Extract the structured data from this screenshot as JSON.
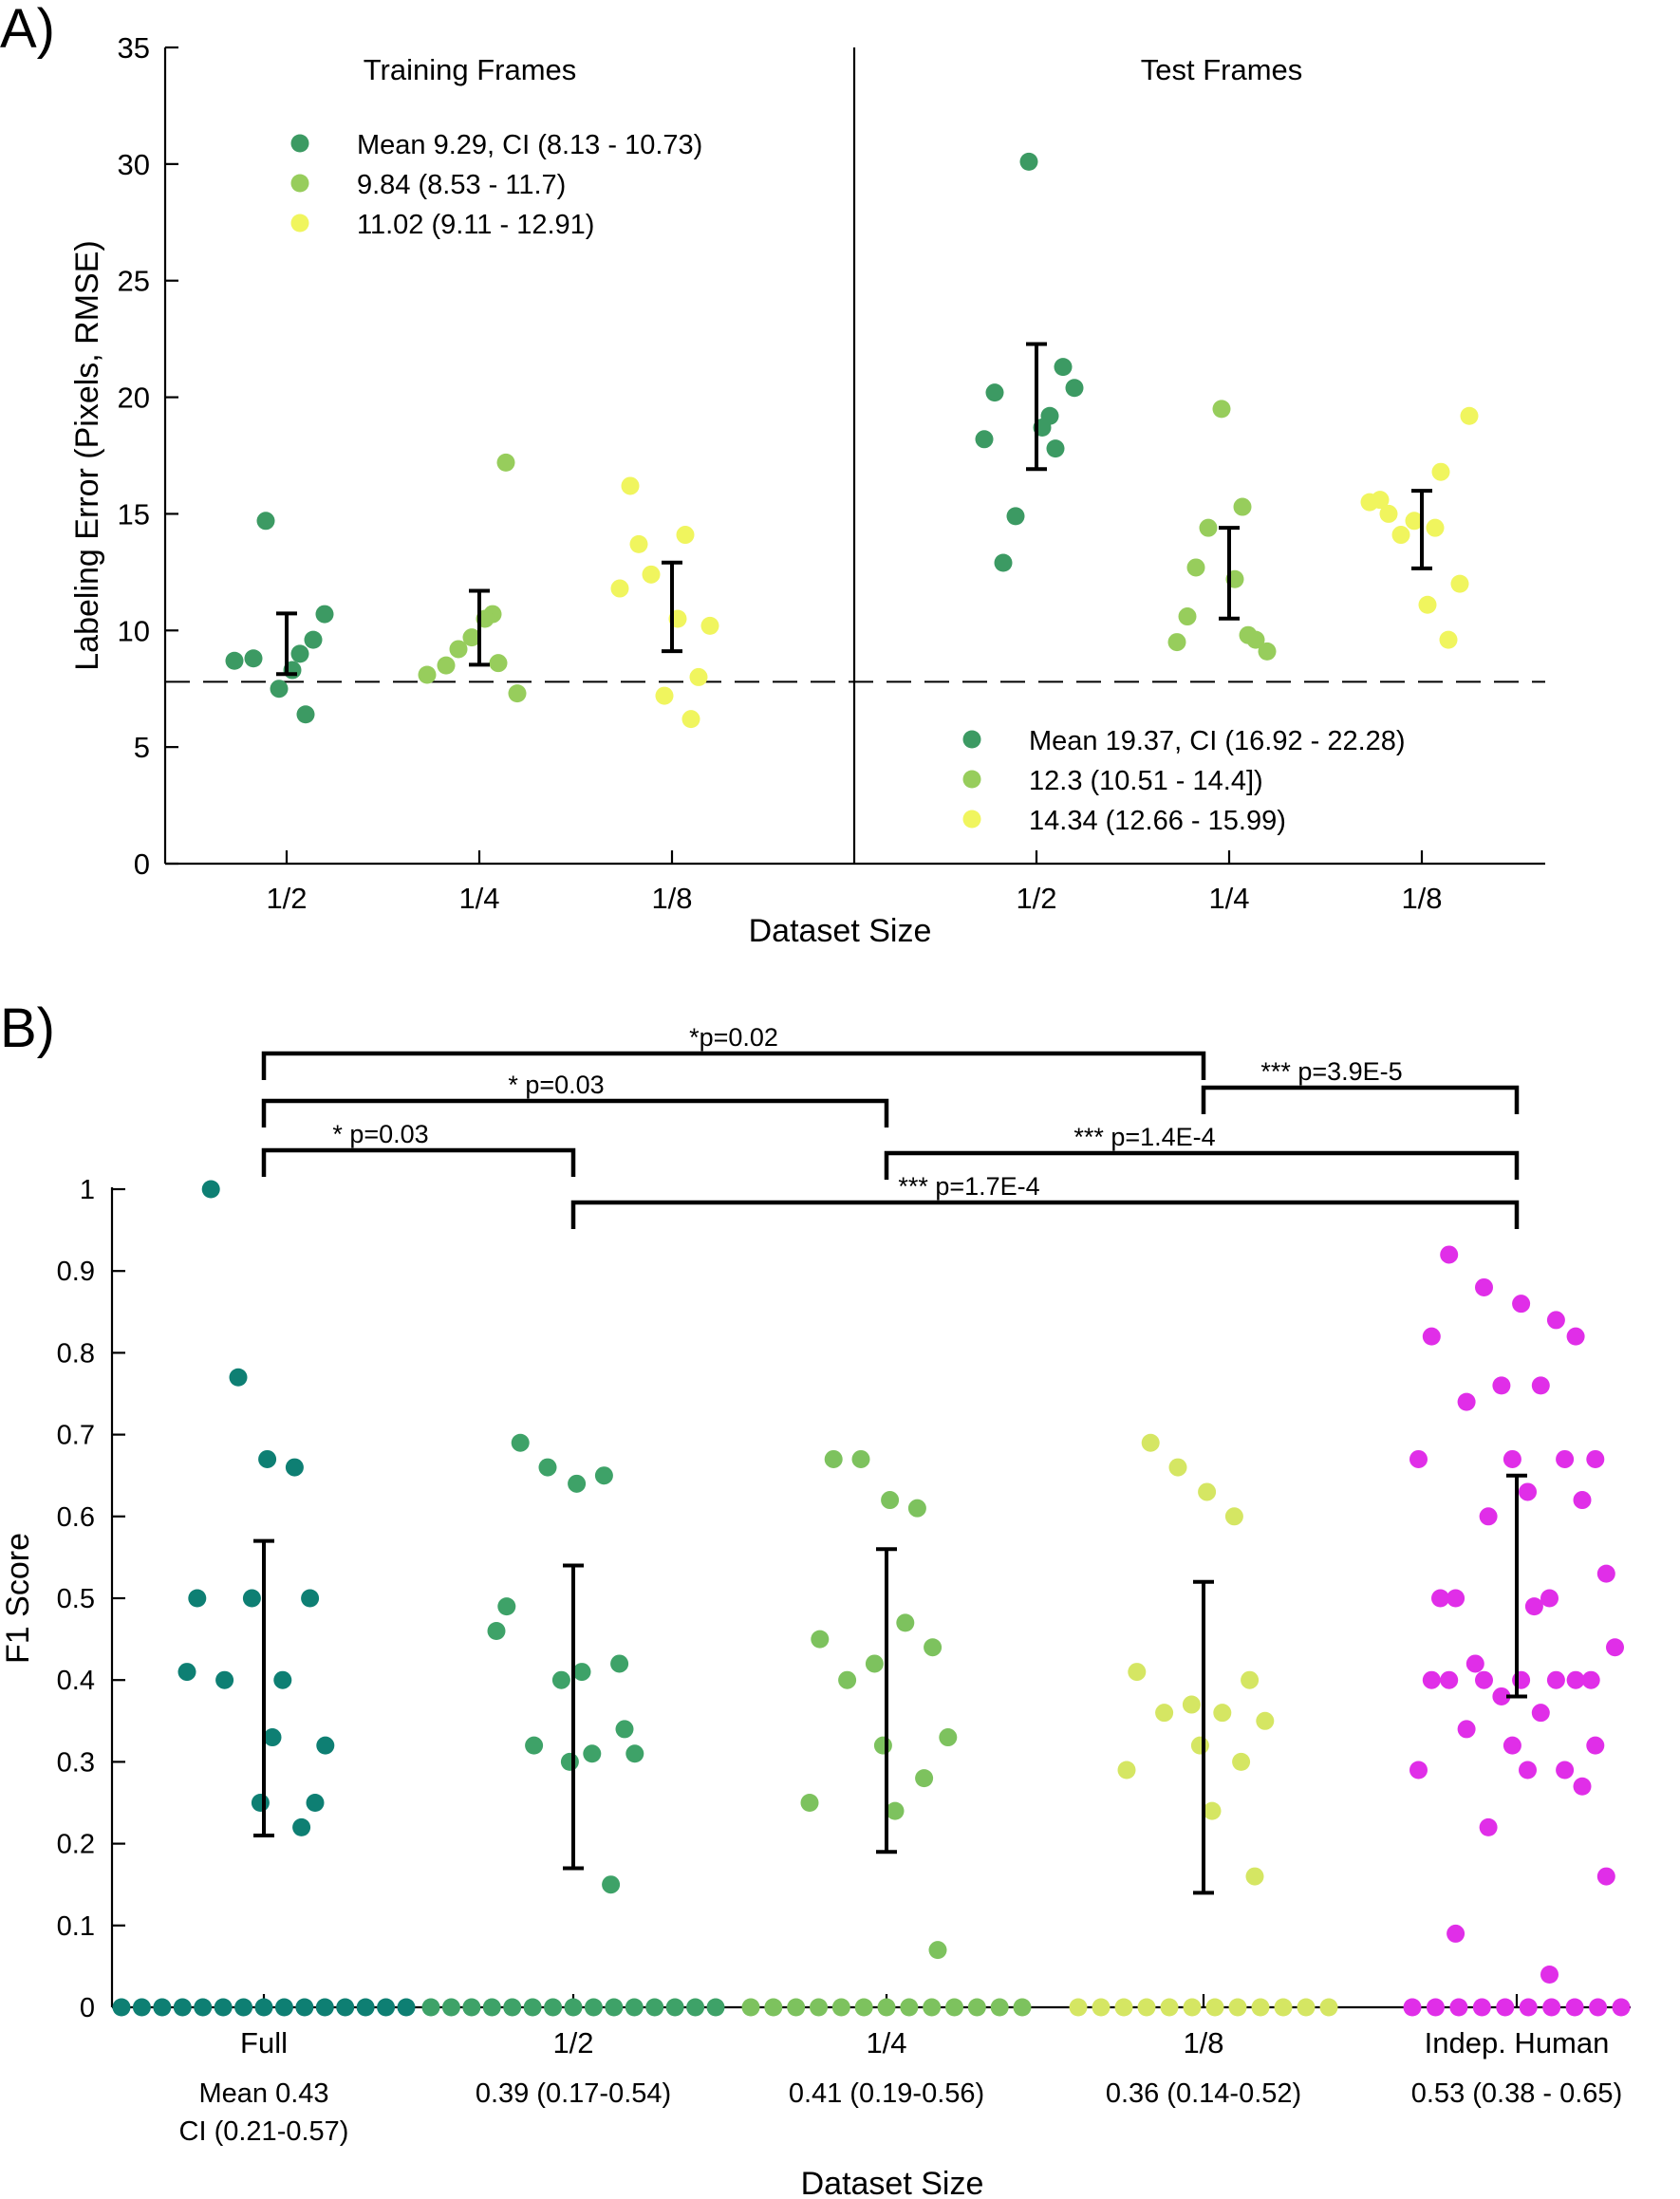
{
  "colors": {
    "darkgreen": "#3c9a63",
    "midgreen": "#97cd5c",
    "yellow": "#f0f55e",
    "teal": "#0e7f73",
    "panelb_half": "#3ea268",
    "panelb_quarter": "#7dc25e",
    "panelb_eighth": "#d5e663",
    "magenta": "#e02ee8"
  },
  "chart_data": [
    {
      "type": "scatter",
      "panel_label": "A)",
      "ylabel": "Labeling Error (Pixels, RMSE)",
      "xlabel": "Dataset Size",
      "ylim": [
        0,
        35
      ],
      "yticks": [
        "0",
        "5",
        "10",
        "15",
        "20",
        "25",
        "30",
        "35"
      ],
      "reference_line": 7.8,
      "groups": [
        {
          "title": "Training Frames",
          "legend": [
            "Mean 9.29, CI (8.13 - 10.73)",
            "9.84 (8.53 - 11.7)",
            "11.02 (9.11 - 12.91)"
          ],
          "categories": [
            "1/2",
            "1/4",
            "1/8"
          ],
          "series": [
            {
              "color": "darkgreen",
              "values": [
                8.7,
                14.7,
                9.0,
                7.5,
                9.6,
                10.7,
                8.8,
                8.3,
                6.4
              ],
              "ci": [
                8.13,
                10.73
              ]
            },
            {
              "color": "midgreen",
              "values": [
                8.1,
                9.2,
                10.7,
                9.7,
                17.2,
                7.3,
                8.5,
                10.5,
                8.6
              ],
              "ci": [
                8.53,
                11.7
              ]
            },
            {
              "color": "yellow",
              "values": [
                11.8,
                12.4,
                14.1,
                7.2,
                8.0,
                10.2,
                13.7,
                10.5,
                6.2,
                16.2
              ],
              "ci": [
                9.11,
                12.91
              ]
            }
          ]
        },
        {
          "title": "Test Frames",
          "legend": [
            "Mean 19.37, CI (16.92 - 22.28)",
            "12.3 (10.51 - 14.4])",
            "14.34 (12.66 - 15.99)"
          ],
          "categories": [
            "1/2",
            "1/4",
            "1/8"
          ],
          "series": [
            {
              "color": "darkgreen",
              "values": [
                18.2,
                14.9,
                19.2,
                30.1,
                21.3,
                20.4,
                12.9,
                18.7,
                17.8,
                20.2
              ],
              "ci": [
                16.92,
                22.28
              ]
            },
            {
              "color": "midgreen",
              "values": [
                9.5,
                14.4,
                15.3,
                19.5,
                9.6,
                9.1,
                12.7,
                12.2,
                9.8,
                10.6
              ],
              "ci": [
                10.51,
                14.4
              ]
            },
            {
              "color": "yellow",
              "values": [
                15.5,
                14.1,
                14.4,
                14.7,
                9.6,
                12.0,
                15.0,
                11.1,
                16.8,
                15.6,
                19.2
              ],
              "ci": [
                12.66,
                15.99
              ]
            }
          ]
        }
      ]
    },
    {
      "type": "scatter",
      "panel_label": "B)",
      "ylabel": "F1 Score",
      "xlabel": "Dataset Size",
      "ylim": [
        0,
        1
      ],
      "yticks": [
        "0",
        "0.1",
        "0.2",
        "0.3",
        "0.4",
        "0.5",
        "0.6",
        "0.7",
        "0.8",
        "0.9",
        "1"
      ],
      "categories": [
        "Full",
        "1/2",
        "1/4",
        "1/8",
        "Indep. Human"
      ],
      "summaries": [
        [
          "Mean 0.43",
          "CI (0.21-0.57)"
        ],
        [
          "0.39 (0.17-0.54)"
        ],
        [
          "0.41 (0.19-0.56)"
        ],
        [
          "0.36 (0.14-0.52)"
        ],
        [
          "0.53 (0.38 - 0.65)"
        ]
      ],
      "series": [
        {
          "name": "Full",
          "color": "teal",
          "ci": [
            0.21,
            0.57
          ],
          "values": [
            1.0,
            0.77,
            0.67,
            0.66,
            0.5,
            0.5,
            0.5,
            0.4,
            0.4,
            0.32,
            0.25,
            0.22,
            0.41,
            0.33,
            0.25,
            0,
            0,
            0,
            0,
            0,
            0,
            0,
            0,
            0,
            0,
            0,
            0,
            0,
            0,
            0
          ]
        },
        {
          "name": "1/2",
          "color": "panelb_half",
          "ci": [
            0.17,
            0.54
          ],
          "values": [
            0.69,
            0.66,
            0.64,
            0.65,
            0.49,
            0.42,
            0.4,
            0.31,
            0.32,
            0.31,
            0.3,
            0.15,
            0.46,
            0.41,
            0.34,
            0,
            0,
            0,
            0,
            0,
            0,
            0,
            0,
            0,
            0,
            0,
            0,
            0,
            0,
            0
          ]
        },
        {
          "name": "1/4",
          "color": "panelb_quarter",
          "ci": [
            0.19,
            0.56
          ],
          "values": [
            0.67,
            0.67,
            0.62,
            0.61,
            0.45,
            0.44,
            0.42,
            0.47,
            0.4,
            0.33,
            0.32,
            0.28,
            0.25,
            0.24,
            0.07,
            0,
            0,
            0,
            0,
            0,
            0,
            0,
            0,
            0,
            0,
            0,
            0,
            0
          ]
        },
        {
          "name": "1/8",
          "color": "panelb_eighth",
          "ci": [
            0.14,
            0.52
          ],
          "values": [
            0.69,
            0.66,
            0.63,
            0.6,
            0.41,
            0.4,
            0.37,
            0.36,
            0.36,
            0.35,
            0.32,
            0.3,
            0.29,
            0.24,
            0.16,
            0,
            0,
            0,
            0,
            0,
            0,
            0,
            0,
            0,
            0,
            0,
            0
          ]
        },
        {
          "name": "Indep. Human",
          "color": "magenta",
          "ci": [
            0.38,
            0.65
          ],
          "values": [
            0.92,
            0.88,
            0.86,
            0.84,
            0.82,
            0.82,
            0.76,
            0.76,
            0.74,
            0.67,
            0.67,
            0.67,
            0.67,
            0.63,
            0.62,
            0.6,
            0.53,
            0.5,
            0.5,
            0.5,
            0.49,
            0.44,
            0.42,
            0.4,
            0.4,
            0.4,
            0.4,
            0.4,
            0.4,
            0.4,
            0.38,
            0.36,
            0.34,
            0.32,
            0.32,
            0.29,
            0.29,
            0.29,
            0.27,
            0.22,
            0.16,
            0.09,
            0.04,
            0,
            0,
            0,
            0,
            0,
            0,
            0,
            0,
            0,
            0
          ]
        }
      ],
      "comparisons": [
        {
          "from": "Full",
          "to": "1/8",
          "label": "*p=0.02"
        },
        {
          "from": "Full",
          "to": "1/4",
          "label": "* p=0.03"
        },
        {
          "from": "Full",
          "to": "1/2",
          "label": "* p=0.03"
        },
        {
          "from": "1/8",
          "to": "Indep. Human",
          "label": "*** p=3.9E-5"
        },
        {
          "from": "1/4",
          "to": "Indep. Human",
          "label": "*** p=1.4E-4"
        },
        {
          "from": "1/2",
          "to": "Indep. Human",
          "label": "*** p=1.7E-4"
        }
      ]
    }
  ]
}
